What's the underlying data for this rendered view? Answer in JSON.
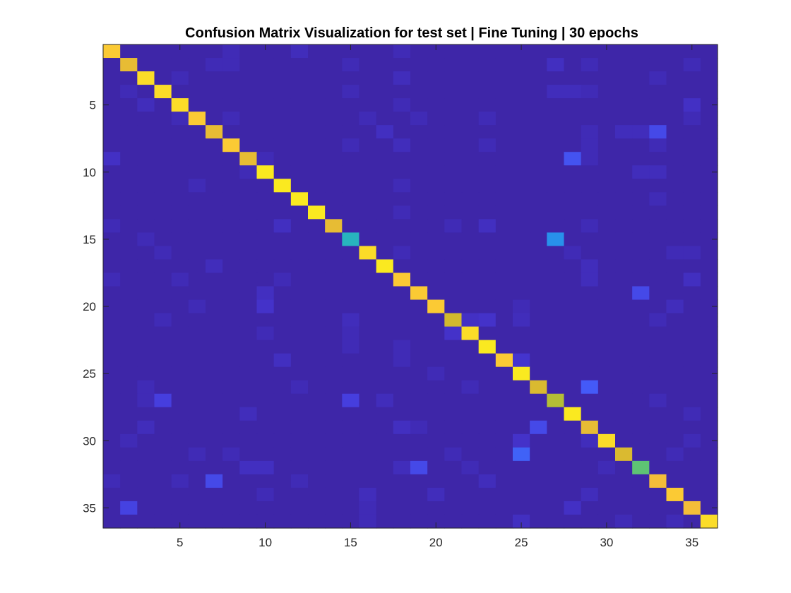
{
  "chart_data": {
    "type": "heatmap",
    "title": "Confusion Matrix Visualization for test set | Fine Tuning | 30 epochs",
    "xlabel": "",
    "ylabel": "",
    "n_classes": 36,
    "x_range": [
      0.5,
      36.5
    ],
    "y_range": [
      0.5,
      36.5
    ],
    "y_reversed": true,
    "x_ticks": [
      5,
      10,
      15,
      20,
      25,
      30,
      35
    ],
    "y_ticks": [
      5,
      10,
      15,
      20,
      25,
      30,
      35
    ],
    "grid": false,
    "colorbar": false,
    "colormap": "parula",
    "value_range": [
      0,
      1
    ],
    "diagonal": [
      0.92,
      0.85,
      0.95,
      0.95,
      0.95,
      0.92,
      0.85,
      0.92,
      0.85,
      0.97,
      0.97,
      0.97,
      0.97,
      0.85,
      0.5,
      0.95,
      0.97,
      0.92,
      0.92,
      0.92,
      0.8,
      0.95,
      0.97,
      0.92,
      0.97,
      0.82,
      0.75,
      0.97,
      0.85,
      0.95,
      0.82,
      0.62,
      0.88,
      0.92,
      0.88,
      0.95
    ],
    "off_diagonal": [
      [
        1,
        8,
        0.03
      ],
      [
        1,
        12,
        0.04
      ],
      [
        1,
        18,
        0.03
      ],
      [
        2,
        7,
        0.03
      ],
      [
        2,
        8,
        0.03
      ],
      [
        2,
        15,
        0.03
      ],
      [
        2,
        27,
        0.05
      ],
      [
        2,
        29,
        0.03
      ],
      [
        2,
        35,
        0.03
      ],
      [
        3,
        5,
        0.03
      ],
      [
        3,
        18,
        0.04
      ],
      [
        3,
        33,
        0.03
      ],
      [
        4,
        2,
        0.03
      ],
      [
        4,
        15,
        0.03
      ],
      [
        4,
        27,
        0.04
      ],
      [
        4,
        28,
        0.04
      ],
      [
        4,
        29,
        0.03
      ],
      [
        5,
        3,
        0.04
      ],
      [
        5,
        18,
        0.03
      ],
      [
        5,
        35,
        0.06
      ],
      [
        6,
        5,
        0.03
      ],
      [
        6,
        8,
        0.03
      ],
      [
        6,
        16,
        0.03
      ],
      [
        6,
        19,
        0.03
      ],
      [
        6,
        23,
        0.03
      ],
      [
        6,
        35,
        0.03
      ],
      [
        7,
        17,
        0.05
      ],
      [
        7,
        29,
        0.03
      ],
      [
        7,
        31,
        0.04
      ],
      [
        7,
        32,
        0.04
      ],
      [
        7,
        33,
        0.15
      ],
      [
        8,
        15,
        0.03
      ],
      [
        8,
        18,
        0.04
      ],
      [
        8,
        23,
        0.03
      ],
      [
        8,
        29,
        0.03
      ],
      [
        8,
        33,
        0.03
      ],
      [
        9,
        1,
        0.06
      ],
      [
        9,
        10,
        0.03
      ],
      [
        9,
        28,
        0.18
      ],
      [
        9,
        29,
        0.03
      ],
      [
        10,
        9,
        0.03
      ],
      [
        10,
        32,
        0.04
      ],
      [
        10,
        33,
        0.04
      ],
      [
        11,
        6,
        0.03
      ],
      [
        11,
        18,
        0.03
      ],
      [
        12,
        33,
        0.03
      ],
      [
        13,
        18,
        0.03
      ],
      [
        14,
        1,
        0.03
      ],
      [
        14,
        11,
        0.05
      ],
      [
        14,
        21,
        0.03
      ],
      [
        14,
        23,
        0.05
      ],
      [
        14,
        29,
        0.03
      ],
      [
        15,
        3,
        0.03
      ],
      [
        15,
        27,
        0.35
      ],
      [
        16,
        4,
        0.03
      ],
      [
        16,
        18,
        0.03
      ],
      [
        16,
        28,
        0.03
      ],
      [
        16,
        34,
        0.03
      ],
      [
        16,
        35,
        0.03
      ],
      [
        17,
        7,
        0.04
      ],
      [
        17,
        29,
        0.04
      ],
      [
        18,
        1,
        0.03
      ],
      [
        18,
        5,
        0.03
      ],
      [
        18,
        11,
        0.03
      ],
      [
        18,
        29,
        0.04
      ],
      [
        18,
        35,
        0.05
      ],
      [
        19,
        10,
        0.05
      ],
      [
        19,
        32,
        0.15
      ],
      [
        20,
        6,
        0.03
      ],
      [
        20,
        10,
        0.07
      ],
      [
        20,
        25,
        0.03
      ],
      [
        20,
        34,
        0.04
      ],
      [
        21,
        4,
        0.03
      ],
      [
        21,
        15,
        0.04
      ],
      [
        21,
        22,
        0.06
      ],
      [
        21,
        23,
        0.07
      ],
      [
        21,
        25,
        0.04
      ],
      [
        21,
        33,
        0.03
      ],
      [
        22,
        10,
        0.03
      ],
      [
        22,
        15,
        0.03
      ],
      [
        22,
        21,
        0.07
      ],
      [
        23,
        15,
        0.03
      ],
      [
        23,
        18,
        0.03
      ],
      [
        24,
        11,
        0.05
      ],
      [
        24,
        18,
        0.03
      ],
      [
        24,
        25,
        0.08
      ],
      [
        25,
        20,
        0.03
      ],
      [
        26,
        3,
        0.03
      ],
      [
        26,
        12,
        0.03
      ],
      [
        26,
        22,
        0.03
      ],
      [
        26,
        29,
        0.2
      ],
      [
        27,
        3,
        0.03
      ],
      [
        27,
        4,
        0.12
      ],
      [
        27,
        15,
        0.12
      ],
      [
        27,
        17,
        0.04
      ],
      [
        27,
        33,
        0.03
      ],
      [
        28,
        9,
        0.04
      ],
      [
        28,
        35,
        0.03
      ],
      [
        29,
        3,
        0.04
      ],
      [
        29,
        18,
        0.05
      ],
      [
        29,
        19,
        0.03
      ],
      [
        29,
        26,
        0.15
      ],
      [
        30,
        2,
        0.03
      ],
      [
        30,
        25,
        0.07
      ],
      [
        30,
        29,
        0.04
      ],
      [
        30,
        35,
        0.03
      ],
      [
        31,
        6,
        0.03
      ],
      [
        31,
        8,
        0.03
      ],
      [
        31,
        21,
        0.03
      ],
      [
        31,
        25,
        0.22
      ],
      [
        31,
        34,
        0.03
      ],
      [
        32,
        9,
        0.05
      ],
      [
        32,
        10,
        0.05
      ],
      [
        32,
        18,
        0.04
      ],
      [
        32,
        19,
        0.15
      ],
      [
        32,
        22,
        0.03
      ],
      [
        32,
        30,
        0.03
      ],
      [
        33,
        1,
        0.03
      ],
      [
        33,
        5,
        0.03
      ],
      [
        33,
        7,
        0.15
      ],
      [
        33,
        12,
        0.03
      ],
      [
        33,
        23,
        0.04
      ],
      [
        34,
        10,
        0.03
      ],
      [
        34,
        16,
        0.04
      ],
      [
        34,
        20,
        0.04
      ],
      [
        34,
        29,
        0.04
      ],
      [
        35,
        2,
        0.13
      ],
      [
        35,
        16,
        0.03
      ],
      [
        35,
        28,
        0.06
      ],
      [
        36,
        16,
        0.03
      ],
      [
        36,
        25,
        0.05
      ],
      [
        36,
        31,
        0.03
      ],
      [
        36,
        34,
        0.03
      ]
    ]
  }
}
